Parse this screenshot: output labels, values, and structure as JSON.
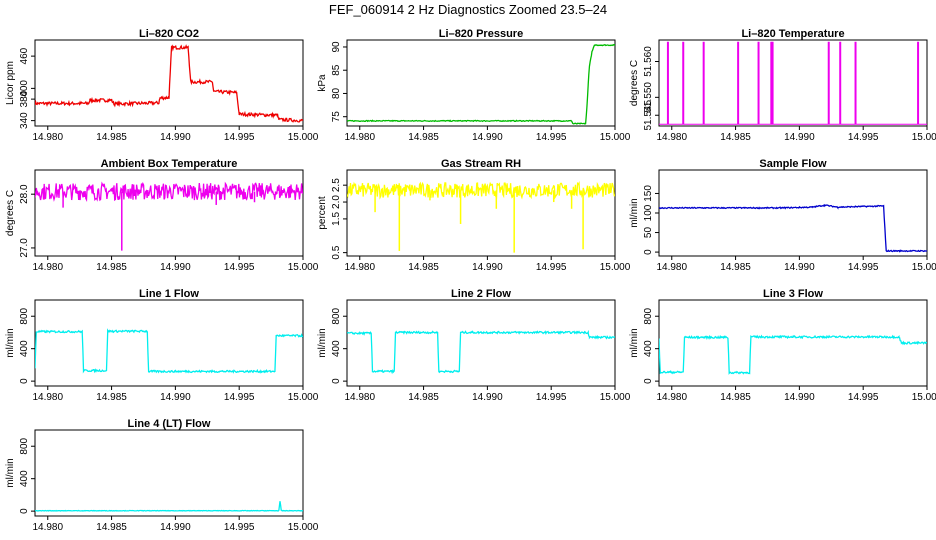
{
  "figure": {
    "title": "FEF_060914  2 Hz Diagnostics Zoomed 23.5–24"
  },
  "chart_data": [
    {
      "type": "line",
      "title": "Li–820 CO2",
      "ylabel": "Licor ppm",
      "xlim": [
        14.979,
        15.0
      ],
      "ylim": [
        330,
        490
      ],
      "x_ticks": [
        "14.980",
        "14.985",
        "14.990",
        "14.995",
        "15.000"
      ],
      "y_ticks": [
        "340",
        "380",
        "400",
        "460"
      ],
      "color": "#ee0000",
      "noise": 3,
      "series": [
        {
          "points": [
            [
              14.979,
              372
            ],
            [
              14.9832,
              372
            ],
            [
              14.9833,
              378
            ],
            [
              14.985,
              378
            ],
            [
              14.9852,
              371
            ],
            [
              14.9887,
              373
            ],
            [
              14.9888,
              382
            ],
            [
              14.9895,
              383
            ],
            [
              14.9897,
              476
            ],
            [
              14.991,
              476
            ],
            [
              14.9912,
              412
            ],
            [
              14.9929,
              412
            ],
            [
              14.993,
              394
            ],
            [
              14.9948,
              392
            ],
            [
              14.995,
              352
            ],
            [
              14.998,
              350
            ],
            [
              14.9981,
              342
            ],
            [
              15.0,
              340
            ]
          ]
        }
      ]
    },
    {
      "type": "line",
      "title": "Li–820 Pressure",
      "ylabel": "kPa",
      "xlim": [
        14.979,
        15.0
      ],
      "ylim": [
        73,
        91.5
      ],
      "x_ticks": [
        "14.980",
        "14.985",
        "14.990",
        "14.995",
        "15.000"
      ],
      "y_ticks": [
        "75",
        "80",
        "85",
        "90"
      ],
      "color": "#00bb00",
      "noise": 0.1,
      "series": [
        {
          "points": [
            [
              14.979,
              74.1
            ],
            [
              14.9966,
              74.1
            ],
            [
              14.9967,
              73.5
            ],
            [
              14.9977,
              73.5
            ],
            [
              14.9978,
              77
            ],
            [
              14.9979,
              82
            ],
            [
              14.998,
              86
            ],
            [
              14.9982,
              89
            ],
            [
              14.9984,
              90.4
            ],
            [
              15.0,
              90.4
            ]
          ]
        }
      ]
    },
    {
      "type": "line",
      "title": "Li–820 Temperature",
      "ylabel": "degrees C",
      "xlim": [
        14.979,
        15.0
      ],
      "ylim": [
        51.542,
        51.566
      ],
      "x_ticks": [
        "14.980",
        "14.985",
        "14.990",
        "14.995",
        "15.000"
      ],
      "y_ticks": [
        "51.545",
        "51.550",
        "51.560"
      ],
      "color": "#ee00ee",
      "noise": 0,
      "spike_base": 51.5425,
      "spike_top": 51.5655,
      "spikes": [
        14.9797,
        14.9809,
        14.9825,
        14.9852,
        14.9868,
        14.9878,
        14.9879,
        14.9923,
        14.9932,
        14.9944,
        14.9993
      ]
    },
    {
      "type": "line",
      "title": "Ambient Box Temperature",
      "ylabel": "degrees C",
      "xlim": [
        14.979,
        15.0
      ],
      "ylim": [
        26.85,
        28.45
      ],
      "x_ticks": [
        "14.980",
        "14.985",
        "14.990",
        "14.995",
        "15.000"
      ],
      "y_ticks": [
        "27.0",
        "28.0"
      ],
      "color": "#ee00ee",
      "noise": 0.16,
      "series": [
        {
          "points": [
            [
              14.979,
              28.05
            ],
            [
              15.0,
              28.05
            ]
          ]
        }
      ],
      "dips": [
        [
          14.9858,
          26.95
        ],
        [
          14.9812,
          27.75
        ],
        [
          14.9932,
          27.8
        ],
        [
          14.9962,
          27.85
        ]
      ]
    },
    {
      "type": "line",
      "title": "Gas Stream RH",
      "ylabel": "percent",
      "xlim": [
        14.979,
        15.0
      ],
      "ylim": [
        0.4,
        2.95
      ],
      "x_ticks": [
        "14.980",
        "14.985",
        "14.990",
        "14.995",
        "15.000"
      ],
      "y_ticks": [
        "0.5",
        "1.5",
        "2.0",
        "2.5"
      ],
      "color": "#ffff00",
      "noise": 0.22,
      "series": [
        {
          "points": [
            [
              14.979,
              2.35
            ],
            [
              15.0,
              2.35
            ]
          ]
        }
      ],
      "dips": [
        [
          14.9831,
          0.55
        ],
        [
          14.9921,
          0.5
        ],
        [
          14.9975,
          0.6
        ],
        [
          14.9879,
          1.35
        ],
        [
          14.9812,
          1.7
        ],
        [
          14.9966,
          1.8
        ],
        [
          14.9952,
          2.0
        ],
        [
          14.9855,
          2.05
        ],
        [
          14.9907,
          1.8
        ]
      ]
    },
    {
      "type": "line",
      "title": "Sample Flow",
      "ylabel": "ml/min",
      "xlim": [
        14.979,
        15.0
      ],
      "ylim": [
        -10,
        210
      ],
      "x_ticks": [
        "14.980",
        "14.985",
        "14.990",
        "14.995",
        "15.000"
      ],
      "y_ticks": [
        "0",
        "50",
        "100",
        "150"
      ],
      "color": "#0000cc",
      "noise": 1.5,
      "series": [
        {
          "points": [
            [
              14.979,
              113
            ],
            [
              14.9885,
              113
            ],
            [
              14.991,
              115
            ],
            [
              14.992,
              120
            ],
            [
              14.993,
              115
            ],
            [
              14.9966,
              118
            ],
            [
              14.9968,
              3
            ],
            [
              15.0,
              3
            ]
          ]
        }
      ]
    },
    {
      "type": "line",
      "title": "Line 1 Flow",
      "ylabel": "ml/min",
      "xlim": [
        14.979,
        15.0
      ],
      "ylim": [
        -60,
        1000
      ],
      "x_ticks": [
        "14.980",
        "14.985",
        "14.990",
        "14.995",
        "15.000"
      ],
      "y_ticks": [
        "0",
        "400",
        "800"
      ],
      "color": "#00eeee",
      "noise": 12,
      "series": [
        {
          "points": [
            [
              14.979,
              150
            ],
            [
              14.9791,
              610
            ],
            [
              14.9827,
              610
            ],
            [
              14.9828,
              130
            ],
            [
              14.9846,
              130
            ],
            [
              14.9847,
              615
            ],
            [
              14.9878,
              615
            ],
            [
              14.9879,
              120
            ],
            [
              14.9978,
              120
            ],
            [
              14.9979,
              560
            ],
            [
              15.0,
              560
            ]
          ]
        }
      ]
    },
    {
      "type": "line",
      "title": "Line 2 Flow",
      "ylabel": "ml/min",
      "xlim": [
        14.979,
        15.0
      ],
      "ylim": [
        -60,
        1000
      ],
      "x_ticks": [
        "14.980",
        "14.985",
        "14.990",
        "14.995",
        "15.000"
      ],
      "y_ticks": [
        "0",
        "400",
        "800"
      ],
      "color": "#00eeee",
      "noise": 12,
      "series": [
        {
          "points": [
            [
              14.979,
              590
            ],
            [
              14.9809,
              590
            ],
            [
              14.981,
              120
            ],
            [
              14.9827,
              120
            ],
            [
              14.9828,
              600
            ],
            [
              14.9861,
              600
            ],
            [
              14.9862,
              120
            ],
            [
              14.9878,
              120
            ],
            [
              14.9879,
              600
            ],
            [
              14.9979,
              600
            ],
            [
              14.998,
              540
            ],
            [
              15.0,
              540
            ]
          ]
        }
      ]
    },
    {
      "type": "line",
      "title": "Line 3 Flow",
      "ylabel": "ml/min",
      "xlim": [
        14.979,
        15.0
      ],
      "ylim": [
        -60,
        1000
      ],
      "x_ticks": [
        "14.980",
        "14.985",
        "14.990",
        "14.995",
        "15.000"
      ],
      "y_ticks": [
        "0",
        "400",
        "800"
      ],
      "color": "#00eeee",
      "noise": 12,
      "series": [
        {
          "points": [
            [
              14.979,
              520
            ],
            [
              14.9791,
              110
            ],
            [
              14.9809,
              110
            ],
            [
              14.981,
              540
            ],
            [
              14.9844,
              540
            ],
            [
              14.9845,
              105
            ],
            [
              14.9861,
              105
            ],
            [
              14.9862,
              545
            ],
            [
              14.9978,
              545
            ],
            [
              14.998,
              470
            ],
            [
              15.0,
              470
            ]
          ]
        }
      ]
    },
    {
      "type": "line",
      "title": "Line 4 (LT) Flow",
      "ylabel": "ml/min",
      "xlim": [
        14.979,
        15.0
      ],
      "ylim": [
        -60,
        1000
      ],
      "x_ticks": [
        "14.980",
        "14.985",
        "14.990",
        "14.995",
        "15.000"
      ],
      "y_ticks": [
        "0",
        "400",
        "800"
      ],
      "color": "#00eeee",
      "noise": 3,
      "series": [
        {
          "points": [
            [
              14.979,
              5
            ],
            [
              14.9981,
              5
            ],
            [
              14.9982,
              120
            ],
            [
              14.9983,
              5
            ],
            [
              15.0,
              5
            ]
          ]
        }
      ]
    }
  ]
}
